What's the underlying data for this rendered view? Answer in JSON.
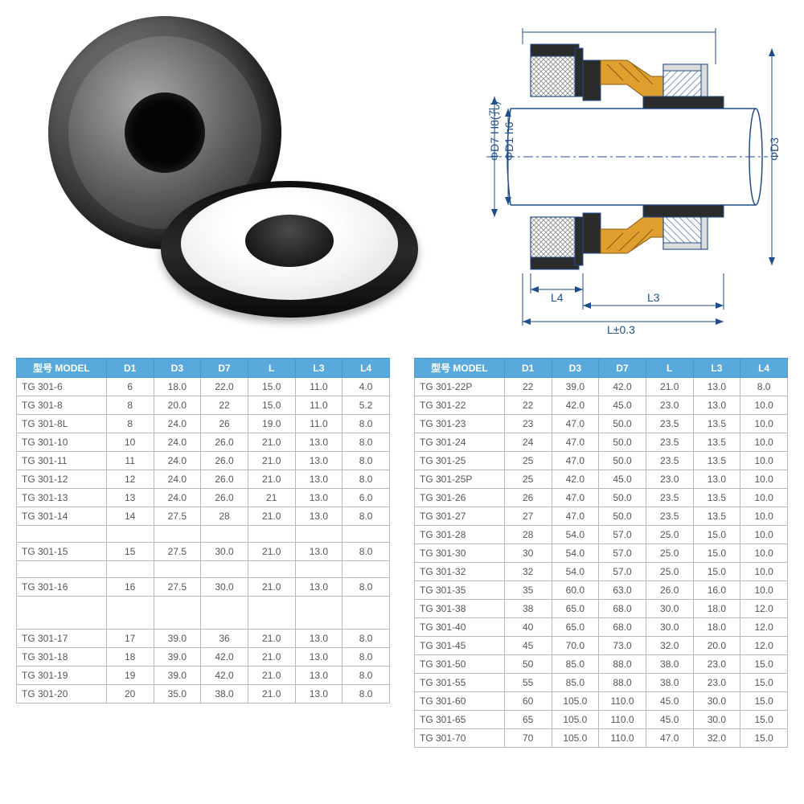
{
  "headers": [
    "型号 MODEL",
    "D1",
    "D3",
    "D7",
    "L",
    "L3",
    "L4"
  ],
  "diagram": {
    "labels": {
      "d7": "ΦD7 H8(孔)",
      "d1": "ΦD1 h6",
      "d3": "ΦD3",
      "l4": "L4",
      "l3": "L3",
      "l": "L±0.3"
    },
    "colors": {
      "line": "#1f4e8c",
      "hatch": "#1f4e8c",
      "rubber": "#2b2b2b",
      "spring": "#e0a030",
      "metal_light": "#dcdcdc"
    }
  },
  "left_rows": [
    {
      "model": "TG 301-6",
      "d1": "6",
      "d3": "18.0",
      "d7": "22.0",
      "l": "15.0",
      "l3": "11.0",
      "l4": "4.0"
    },
    {
      "model": "TG 301-8",
      "d1": "8",
      "d3": "20.0",
      "d7": "22",
      "l": "15.0",
      "l3": "11.0",
      "l4": "5.2"
    },
    {
      "model": "TG 301-8L",
      "d1": "8",
      "d3": "24.0",
      "d7": "26",
      "l": "19.0",
      "l3": "11.0",
      "l4": "8.0"
    },
    {
      "model": "TG 301-10",
      "d1": "10",
      "d3": "24.0",
      "d7": "26.0",
      "l": "21.0",
      "l3": "13.0",
      "l4": "8.0"
    },
    {
      "model": "TG 301-11",
      "d1": "11",
      "d3": "24.0",
      "d7": "26.0",
      "l": "21.0",
      "l3": "13.0",
      "l4": "8.0"
    },
    {
      "model": "TG 301-12",
      "d1": "12",
      "d3": "24.0",
      "d7": "26.0",
      "l": "21.0",
      "l3": "13.0",
      "l4": "8.0"
    },
    {
      "model": "TG 301-13",
      "d1": "13",
      "d3": "24.0",
      "d7": "26.0",
      "l": "21",
      "l3": "13.0",
      "l4": "6.0"
    },
    {
      "model": "TG 301-14",
      "d1": "14",
      "d3": "27.5",
      "d7": "28",
      "l": "21.0",
      "l3": "13.0",
      "l4": "8.0"
    },
    {
      "gap": true
    },
    {
      "model": "TG 301-15",
      "d1": "15",
      "d3": "27.5",
      "d7": "30.0",
      "l": "21.0",
      "l3": "13.0",
      "l4": "8.0"
    },
    {
      "gap": true
    },
    {
      "model": "TG 301-16",
      "d1": "16",
      "d3": "27.5",
      "d7": "30.0",
      "l": "21.0",
      "l3": "13.0",
      "l4": "8.0"
    },
    {
      "gap": true
    },
    {
      "gap": true
    },
    {
      "model": "TG 301-17",
      "d1": "17",
      "d3": "39.0",
      "d7": "36",
      "l": "21.0",
      "l3": "13.0",
      "l4": "8.0"
    },
    {
      "model": "TG 301-18",
      "d1": "18",
      "d3": "39.0",
      "d7": "42.0",
      "l": "21.0",
      "l3": "13.0",
      "l4": "8.0"
    },
    {
      "model": "TG 301-19",
      "d1": "19",
      "d3": "39.0",
      "d7": "42.0",
      "l": "21.0",
      "l3": "13.0",
      "l4": "8.0"
    },
    {
      "model": "TG 301-20",
      "d1": "20",
      "d3": "35.0",
      "d7": "38.0",
      "l": "21.0",
      "l3": "13.0",
      "l4": "8.0"
    }
  ],
  "right_rows": [
    {
      "model": "TG 301-22P",
      "d1": "22",
      "d3": "39.0",
      "d7": "42.0",
      "l": "21.0",
      "l3": "13.0",
      "l4": "8.0"
    },
    {
      "model": "TG 301-22",
      "d1": "22",
      "d3": "42.0",
      "d7": "45.0",
      "l": "23.0",
      "l3": "13.0",
      "l4": "10.0"
    },
    {
      "model": "TG 301-23",
      "d1": "23",
      "d3": "47.0",
      "d7": "50.0",
      "l": "23.5",
      "l3": "13.5",
      "l4": "10.0"
    },
    {
      "model": "TG 301-24",
      "d1": "24",
      "d3": "47.0",
      "d7": "50.0",
      "l": "23.5",
      "l3": "13.5",
      "l4": "10.0"
    },
    {
      "model": "TG 301-25",
      "d1": "25",
      "d3": "47.0",
      "d7": "50.0",
      "l": "23.5",
      "l3": "13.5",
      "l4": "10.0"
    },
    {
      "model": "TG 301-25P",
      "d1": "25",
      "d3": "42.0",
      "d7": "45.0",
      "l": "23.0",
      "l3": "13.0",
      "l4": "10.0"
    },
    {
      "model": "TG 301-26",
      "d1": "26",
      "d3": "47.0",
      "d7": "50.0",
      "l": "23.5",
      "l3": "13.5",
      "l4": "10.0"
    },
    {
      "model": "TG 301-27",
      "d1": "27",
      "d3": "47.0",
      "d7": "50.0",
      "l": "23.5",
      "l3": "13.5",
      "l4": "10.0"
    },
    {
      "model": "TG 301-28",
      "d1": "28",
      "d3": "54.0",
      "d7": "57.0",
      "l": "25.0",
      "l3": "15.0",
      "l4": "10.0"
    },
    {
      "model": "TG 301-30",
      "d1": "30",
      "d3": "54.0",
      "d7": "57.0",
      "l": "25.0",
      "l3": "15.0",
      "l4": "10.0"
    },
    {
      "model": "TG 301-32",
      "d1": "32",
      "d3": "54.0",
      "d7": "57.0",
      "l": "25.0",
      "l3": "15.0",
      "l4": "10.0"
    },
    {
      "model": "TG 301-35",
      "d1": "35",
      "d3": "60.0",
      "d7": "63.0",
      "l": "26.0",
      "l3": "16.0",
      "l4": "10.0"
    },
    {
      "model": "TG 301-38",
      "d1": "38",
      "d3": "65.0",
      "d7": "68.0",
      "l": "30.0",
      "l3": "18.0",
      "l4": "12.0"
    },
    {
      "model": "TG 301-40",
      "d1": "40",
      "d3": "65.0",
      "d7": "68.0",
      "l": "30.0",
      "l3": "18.0",
      "l4": "12.0"
    },
    {
      "model": "TG 301-45",
      "d1": "45",
      "d3": "70.0",
      "d7": "73.0",
      "l": "32.0",
      "l3": "20.0",
      "l4": "12.0"
    },
    {
      "model": "TG 301-50",
      "d1": "50",
      "d3": "85.0",
      "d7": "88.0",
      "l": "38.0",
      "l3": "23.0",
      "l4": "15.0"
    },
    {
      "model": "TG 301-55",
      "d1": "55",
      "d3": "85.0",
      "d7": "88.0",
      "l": "38.0",
      "l3": "23.0",
      "l4": "15.0"
    },
    {
      "model": "TG 301-60",
      "d1": "60",
      "d3": "105.0",
      "d7": "110.0",
      "l": "45.0",
      "l3": "30.0",
      "l4": "15.0"
    },
    {
      "model": "TG 301-65",
      "d1": "65",
      "d3": "105.0",
      "d7": "110.0",
      "l": "45.0",
      "l3": "30.0",
      "l4": "15.0"
    },
    {
      "model": "TG 301-70",
      "d1": "70",
      "d3": "105.0",
      "d7": "110.0",
      "l": "47.0",
      "l3": "32.0",
      "l4": "15.0"
    }
  ]
}
